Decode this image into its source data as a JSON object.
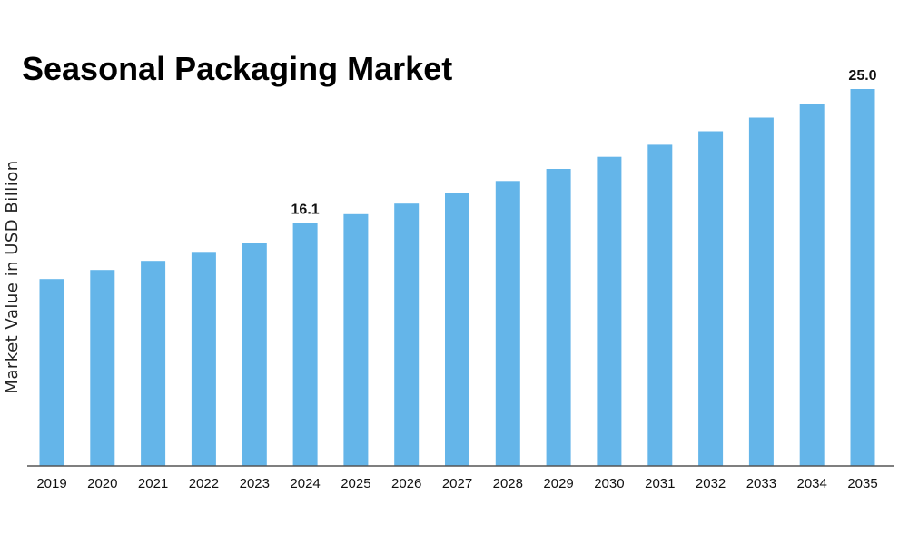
{
  "chart_data": {
    "type": "bar",
    "title": "Seasonal Packaging Market",
    "xlabel": "",
    "ylabel": "Market Value in USD Billion",
    "categories": [
      "2019",
      "2020",
      "2021",
      "2022",
      "2023",
      "2024",
      "2025",
      "2026",
      "2027",
      "2028",
      "2029",
      "2030",
      "2031",
      "2032",
      "2033",
      "2034",
      "2035"
    ],
    "values": [
      12.4,
      13.0,
      13.6,
      14.2,
      14.8,
      16.1,
      16.7,
      17.4,
      18.1,
      18.9,
      19.7,
      20.5,
      21.3,
      22.2,
      23.1,
      24.0,
      25.0
    ],
    "data_labels": {
      "2024": "16.1",
      "2035": "25.0"
    },
    "ylim": [
      0,
      25
    ],
    "grid": false,
    "legend": "none",
    "bar_color": "#64b5e9",
    "axis_color": "#555555"
  }
}
